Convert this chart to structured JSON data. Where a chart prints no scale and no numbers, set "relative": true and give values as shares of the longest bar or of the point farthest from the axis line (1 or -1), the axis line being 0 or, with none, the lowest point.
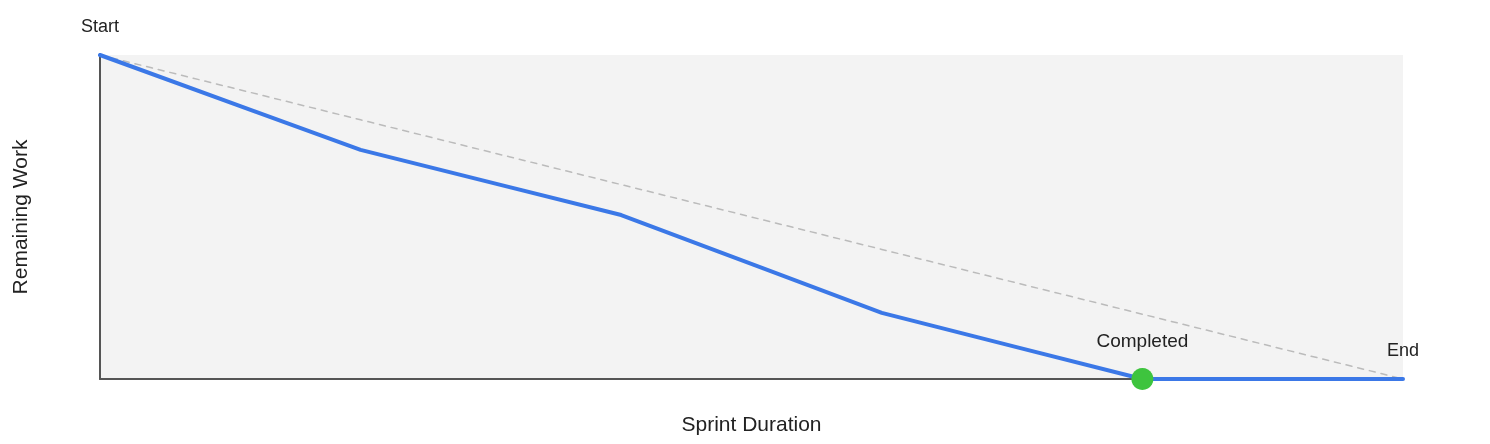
{
  "chart_data": {
    "type": "line",
    "xlabel": "Sprint Duration",
    "ylabel": "Remaining Work",
    "relative": true,
    "categories": [
      null,
      null,
      null,
      null,
      null,
      null
    ],
    "series": [
      {
        "color": "#3b78e7",
        "values": [
          1,
          0.707,
          0.506,
          0.204,
          0,
          0
        ],
        "line_style": "solid",
        "marker": "none"
      },
      {
        "color": "#bbbbbb",
        "values": [
          1,
          0.8,
          0.6,
          0.4,
          0.2,
          0
        ],
        "line_style": "dashed",
        "marker": "none"
      },
      {
        "name": "Completed",
        "color": "#3ec43e",
        "values": [
          null,
          null,
          null,
          null,
          0,
          null
        ],
        "marker": "circle"
      }
    ],
    "annotations": [
      "Start",
      "End"
    ],
    "grid": false,
    "legend": false
  }
}
